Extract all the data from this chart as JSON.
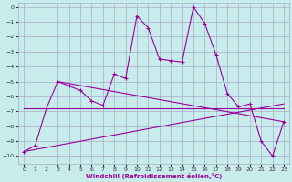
{
  "xlabel": "Windchill (Refroidissement éolien,°C)",
  "background_color": "#c8ecec",
  "grid_color": "#aaaacc",
  "line_color": "#990099",
  "xlim": [
    -0.5,
    23.5
  ],
  "ylim": [
    -10.5,
    0.3
  ],
  "xticks": [
    0,
    1,
    2,
    3,
    4,
    5,
    6,
    7,
    8,
    9,
    10,
    11,
    12,
    13,
    14,
    15,
    16,
    17,
    18,
    19,
    20,
    21,
    22,
    23
  ],
  "yticks": [
    0,
    -1,
    -2,
    -3,
    -4,
    -5,
    -6,
    -7,
    -8,
    -9,
    -10
  ],
  "series_main": [
    [
      0,
      -9.7
    ],
    [
      1,
      -9.3
    ],
    [
      2,
      -6.8
    ],
    [
      3,
      -5.0
    ],
    [
      4,
      -5.3
    ],
    [
      5,
      -5.6
    ],
    [
      6,
      -6.3
    ],
    [
      7,
      -6.6
    ],
    [
      8,
      -4.5
    ],
    [
      9,
      -4.8
    ],
    [
      10,
      -0.6
    ],
    [
      11,
      -1.4
    ],
    [
      12,
      -3.5
    ],
    [
      13,
      -3.6
    ],
    [
      14,
      -3.7
    ],
    [
      15,
      0.0
    ],
    [
      16,
      -1.1
    ],
    [
      17,
      -3.2
    ],
    [
      18,
      -5.8
    ],
    [
      19,
      -6.7
    ],
    [
      20,
      -6.5
    ],
    [
      21,
      -9.0
    ],
    [
      22,
      -10.0
    ],
    [
      23,
      -7.7
    ]
  ],
  "series_diag_up": [
    [
      0,
      -9.7
    ],
    [
      23,
      -6.5
    ]
  ],
  "series_diag_down": [
    [
      3,
      -5.0
    ],
    [
      23,
      -7.7
    ]
  ],
  "series_flat": [
    [
      0,
      -6.8
    ],
    [
      23,
      -6.8
    ]
  ]
}
